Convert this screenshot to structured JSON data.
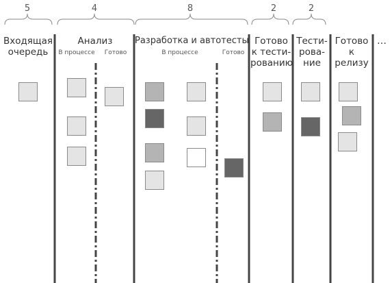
{
  "board": {
    "columns": [
      {
        "id": "backlog",
        "title_lines": [
          "Входящая",
          "очередь"
        ],
        "wip": "5"
      },
      {
        "id": "analysis",
        "title_lines": [
          "Анализ"
        ],
        "wip": "4",
        "sub_in_progress": "В процессе",
        "sub_done": "Готово"
      },
      {
        "id": "dev",
        "title_lines": [
          "Разработка и автотесты"
        ],
        "wip": "8",
        "sub_in_progress": "В процессе",
        "sub_done": "Готово"
      },
      {
        "id": "ready-test",
        "title_lines": [
          "Готово",
          "к тести-",
          "рованию"
        ],
        "wip": "2"
      },
      {
        "id": "testing",
        "title_lines": [
          "Тести-",
          "рова-",
          "ние"
        ],
        "wip": "2"
      },
      {
        "id": "ready-release",
        "title_lines": [
          "Готово",
          "к релизу"
        ]
      }
    ],
    "more": "…",
    "card_colors": {
      "light": "#e4e4e4",
      "mid": "#b4b4b4",
      "dark": "#666666",
      "white": "#ffffff"
    }
  }
}
